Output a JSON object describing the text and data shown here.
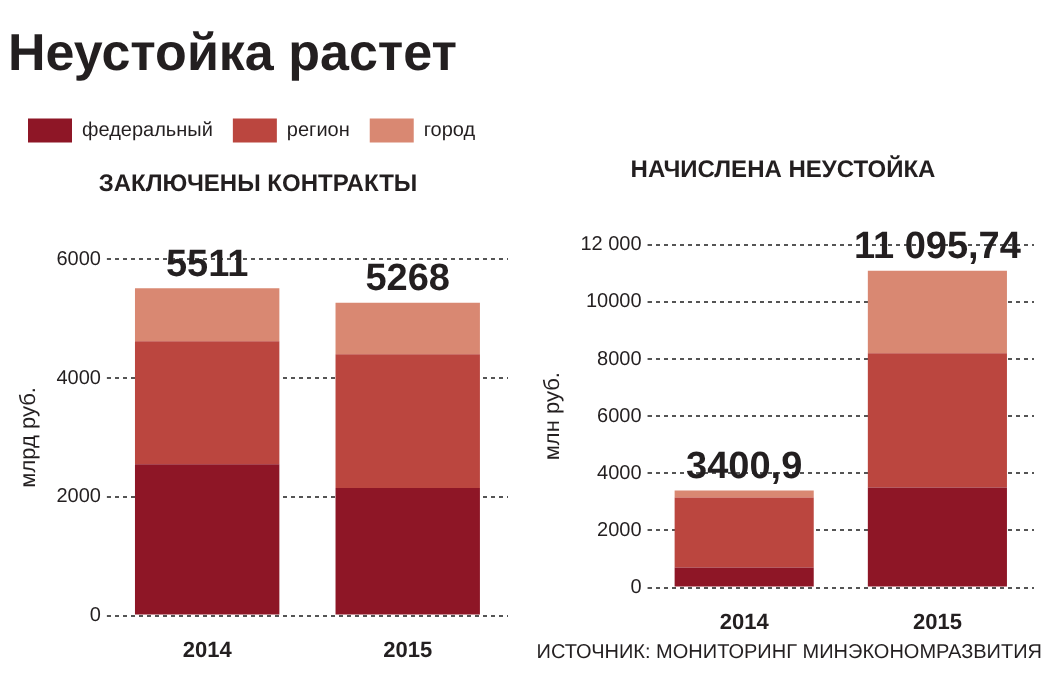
{
  "chart_data": [
    {
      "type": "bar",
      "title": "Неустойка растет",
      "subtitle": "ЗАКЛЮЧЕНЫ КОНТРАКТЫ",
      "ylabel": "млрд руб.",
      "categories": [
        "2014",
        "2015"
      ],
      "stacked": true,
      "series": [
        {
          "name": "федеральный",
          "color": "#8e1626",
          "values": [
            2550,
            2150
          ]
        },
        {
          "name": "регион",
          "color": "#bb463f",
          "values": [
            2070,
            2250
          ]
        },
        {
          "name": "город",
          "color": "#d98872",
          "values": [
            891,
            868
          ]
        }
      ],
      "totals": [
        "5511",
        "5268"
      ],
      "ylim": [
        0,
        6000
      ],
      "yticks": [
        0,
        2000,
        4000,
        6000
      ],
      "grid": "y",
      "legend": "top left"
    },
    {
      "type": "bar",
      "title": "НАЧИСЛЕНА НЕУСТОЙКА",
      "ylabel": "млн руб.",
      "categories": [
        "2014",
        "2015"
      ],
      "stacked": true,
      "series": [
        {
          "color": "#8e1626",
          "values": [
            700,
            3500
          ]
        },
        {
          "color": "#bb463f",
          "values": [
            2450,
            4700
          ]
        },
        {
          "color": "#d98872",
          "values": [
            250.9,
            2895.74
          ]
        }
      ],
      "totals": [
        "3400,9",
        "11 095,74"
      ],
      "ylim": [
        0,
        12000
      ],
      "yticks": [
        0,
        2000,
        4000,
        6000,
        8000,
        10000,
        {
          "value": 12000,
          "label": "12 000"
        }
      ],
      "grid": "y",
      "legend": false,
      "annotations": [
        "ИСТОЧНИК: МОНИТОРИНГ МИНЭКОНОМРАЗВИТИЯ"
      ]
    }
  ]
}
